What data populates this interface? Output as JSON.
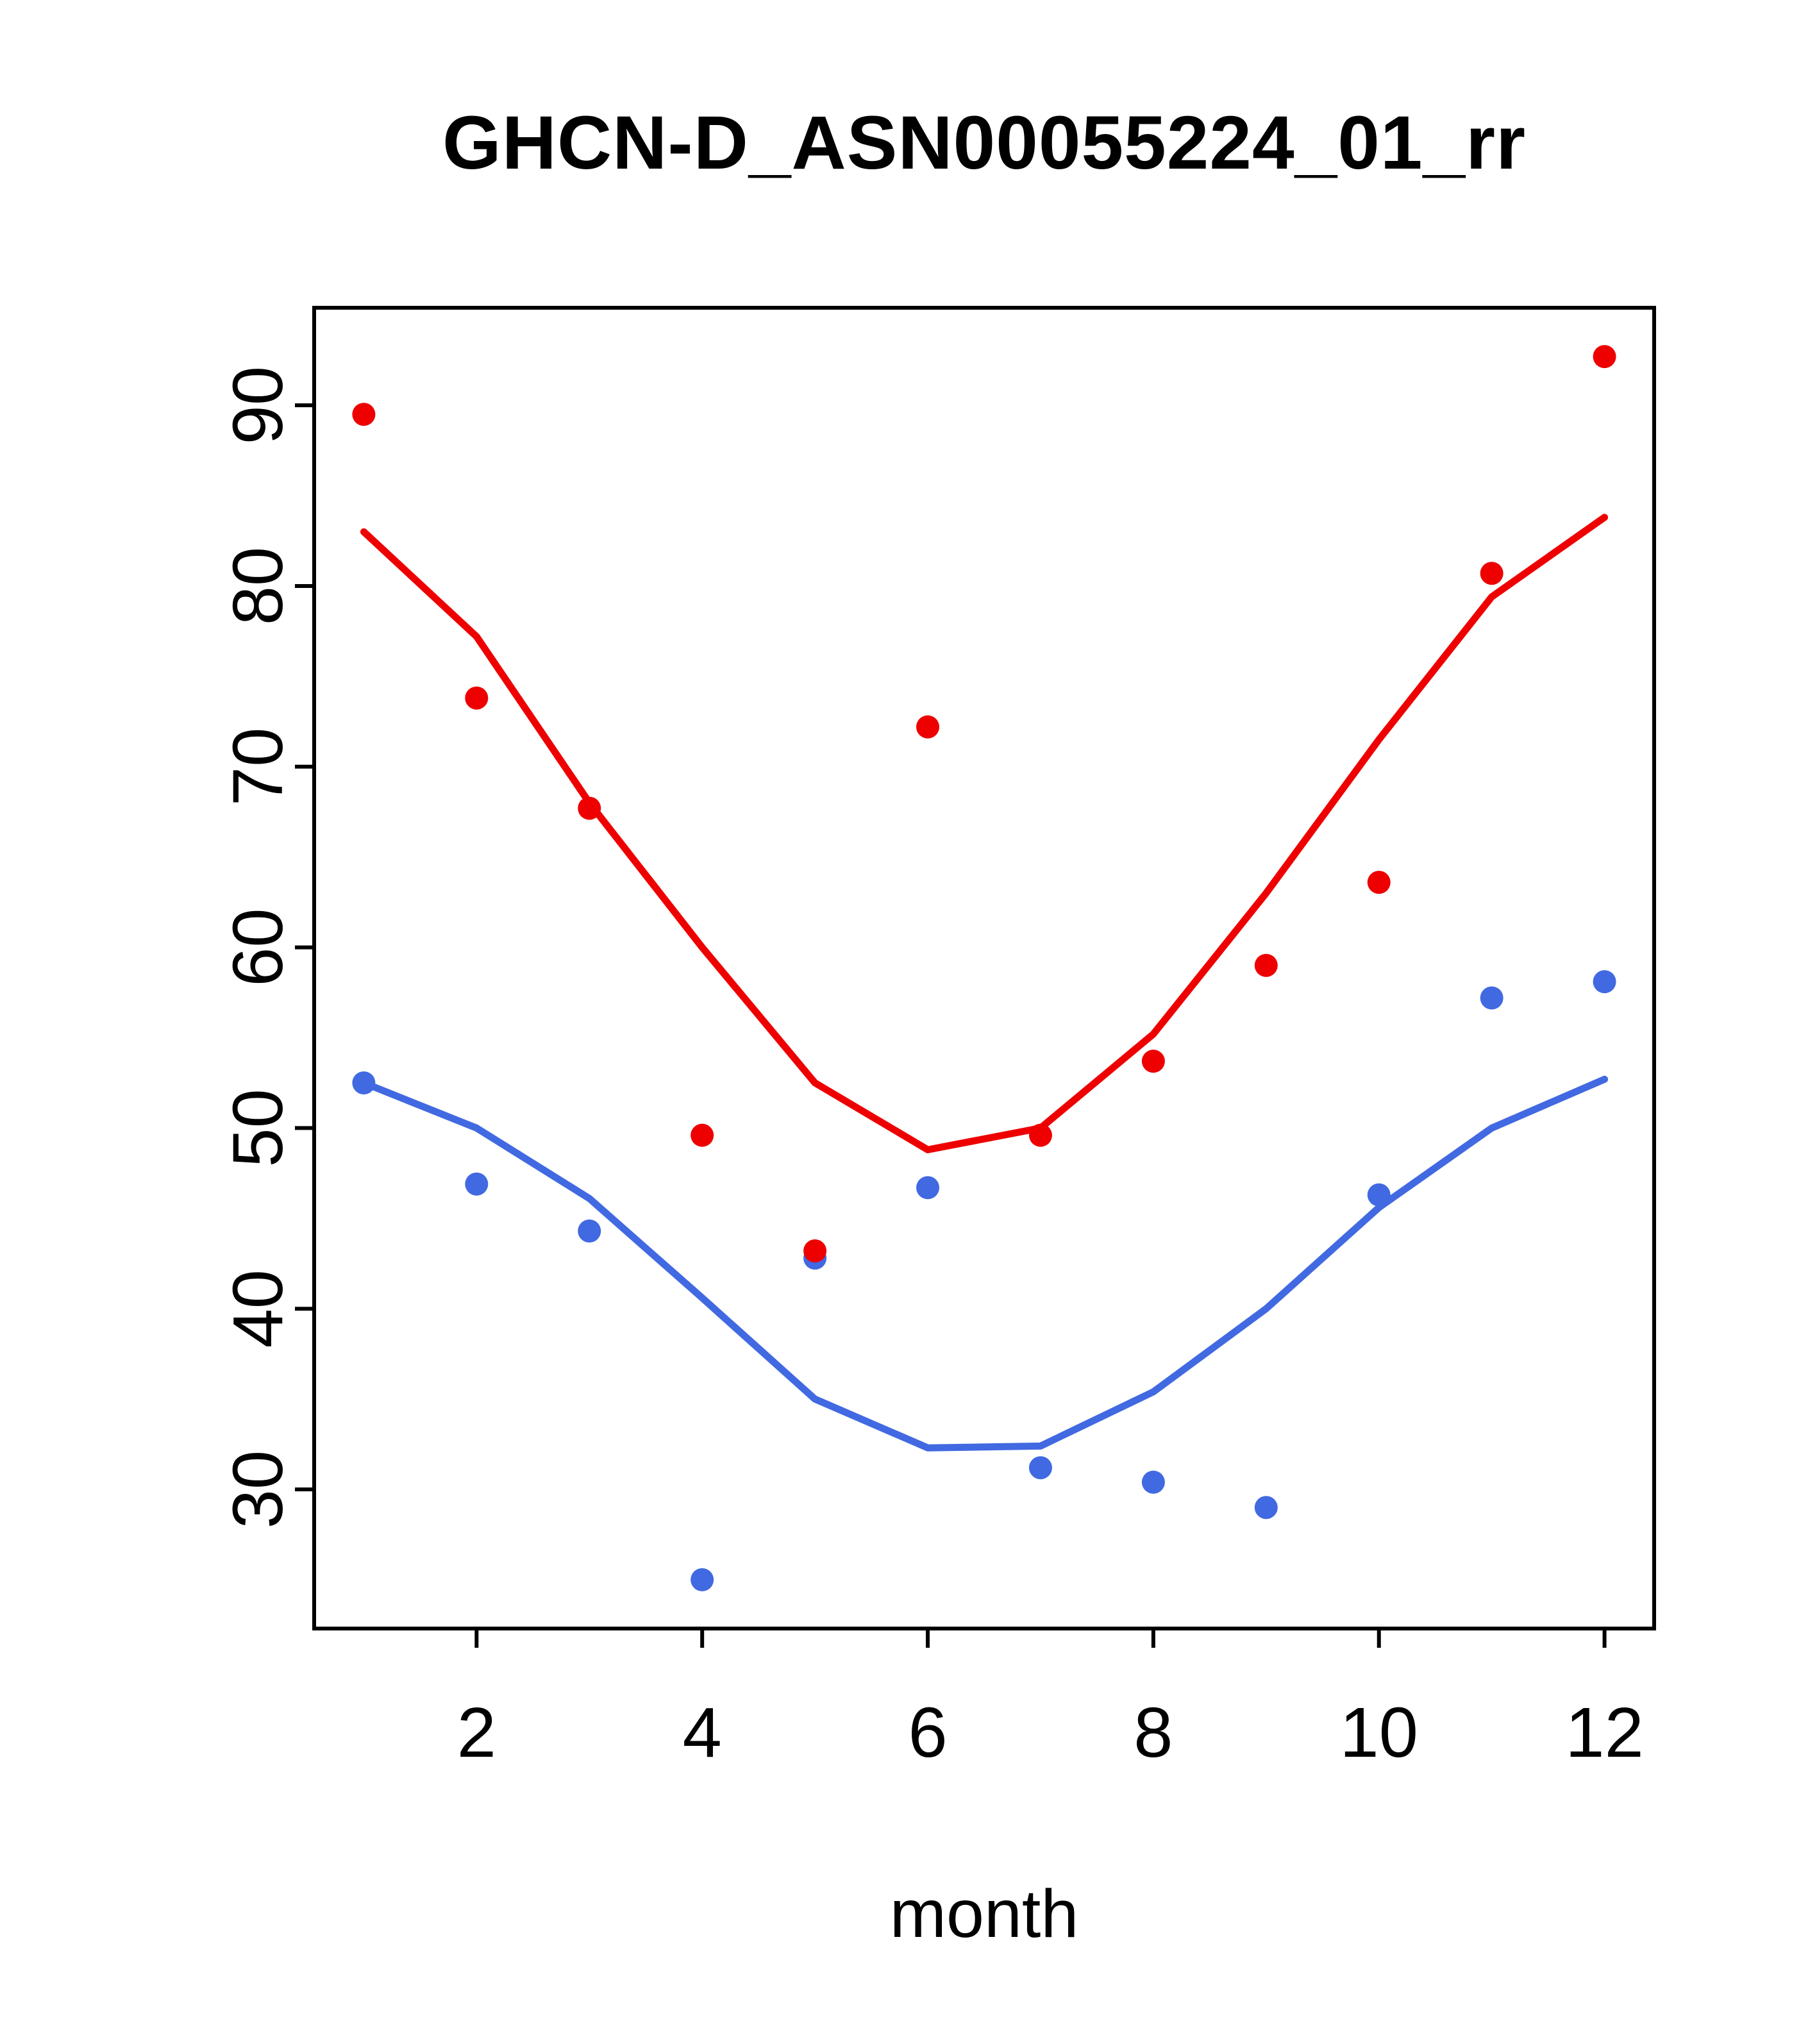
{
  "title": "GHCN-D_ASN00055224_01_rr",
  "chart_data": {
    "type": "scatter",
    "title": "GHCN-D_ASN00055224_01_rr",
    "xlabel": "month",
    "ylabel": "",
    "x": [
      1,
      2,
      3,
      4,
      5,
      6,
      7,
      8,
      9,
      10,
      11,
      12
    ],
    "xlim": [
      0.56,
      12.44
    ],
    "ylim": [
      22.3,
      95.4
    ],
    "xticks": [
      2,
      4,
      6,
      8,
      10,
      12
    ],
    "yticks": [
      30,
      40,
      50,
      60,
      70,
      80,
      90
    ],
    "grid": false,
    "legend": "none",
    "colors": {
      "red": "#ee0000",
      "blue": "#4169e1",
      "axis": "#000000",
      "text": "#000000"
    },
    "series": [
      {
        "name": "blue-points",
        "kind": "points",
        "color": "#4169e1",
        "values": [
          52.5,
          46.9,
          44.3,
          25.0,
          42.8,
          46.7,
          31.2,
          30.4,
          29.0,
          46.3,
          57.2,
          58.1
        ]
      },
      {
        "name": "blue-line",
        "kind": "line",
        "color": "#4169e1",
        "values": [
          52.5,
          50.0,
          46.1,
          40.6,
          35.0,
          32.3,
          32.4,
          35.4,
          40.0,
          45.6,
          50.0,
          52.7
        ]
      },
      {
        "name": "red-points",
        "kind": "points",
        "color": "#ee0000",
        "values": [
          89.5,
          73.8,
          67.7,
          49.6,
          43.2,
          72.2,
          49.6,
          53.7,
          59.0,
          63.6,
          80.7,
          92.7
        ]
      },
      {
        "name": "red-line",
        "kind": "line",
        "color": "#ee0000",
        "values": [
          83.0,
          77.2,
          68.0,
          60.0,
          52.5,
          48.8,
          50.0,
          55.2,
          63.0,
          71.5,
          79.4,
          83.8
        ]
      }
    ]
  }
}
